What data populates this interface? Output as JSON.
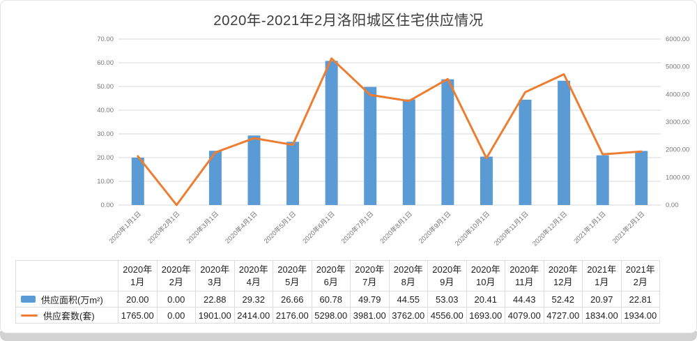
{
  "frame": {
    "panel_bg": "#ffffff",
    "panel_border": "#e3e3e3",
    "bottom_strip_color": "#d2d2d2"
  },
  "chart_data": {
    "type": "combo-bar-line",
    "title": "2020年-2021年2月洛阳城区住宅供应情况",
    "categories": [
      "2020年1月1日",
      "2020年2月1日",
      "2020年3月1日",
      "2020年4月1日",
      "2020年5月1日",
      "2020年6月1日",
      "2020年7月1日",
      "2020年8月1日",
      "2020年9月1日",
      "2020年10月1日",
      "2020年11月1日",
      "2020年12月1日",
      "2021年1月1日",
      "2021年2月1日"
    ],
    "series": [
      {
        "name": "供应面积(万m²)",
        "type": "bar",
        "axis": "left",
        "color": "#5B9BD5",
        "values": [
          20.0,
          0.0,
          22.88,
          29.32,
          26.66,
          60.78,
          49.79,
          44.55,
          53.03,
          20.41,
          44.43,
          52.42,
          20.97,
          22.81
        ]
      },
      {
        "name": "供应套数(套)",
        "type": "line",
        "axis": "right",
        "color": "#ED7D31",
        "values": [
          1765.0,
          0.0,
          1901.0,
          2414.0,
          2176.0,
          5298.0,
          3981.0,
          3762.0,
          4556.0,
          1693.0,
          4079.0,
          4727.0,
          1834.0,
          1934.0
        ]
      }
    ],
    "left_axis": {
      "min": 0,
      "max": 70,
      "ticks": [
        "0.00",
        "10.00",
        "20.00",
        "30.00",
        "40.00",
        "50.00",
        "60.00",
        "70.00"
      ]
    },
    "right_axis": {
      "min": 0,
      "max": 6000,
      "ticks": [
        "0.00",
        "1000.00",
        "2000.00",
        "3000.00",
        "4000.00",
        "5000.00",
        "6000.00"
      ]
    },
    "grid": true,
    "gridline_color": "#d9d9d9",
    "axis_text_color": "#767676",
    "legend_position": "table-left"
  },
  "table": {
    "column_headers": [
      {
        "year": "2020年",
        "month": "1月"
      },
      {
        "year": "2020年",
        "month": "2月"
      },
      {
        "year": "2020年",
        "month": "3月"
      },
      {
        "year": "2020年",
        "month": "4月"
      },
      {
        "year": "2020年",
        "month": "5月"
      },
      {
        "year": "2020年",
        "month": "6月"
      },
      {
        "year": "2020年",
        "month": "7月"
      },
      {
        "year": "2020年",
        "month": "8月"
      },
      {
        "year": "2020年",
        "month": "9月"
      },
      {
        "year": "2020年",
        "month": "10月"
      },
      {
        "year": "2020年",
        "month": "11月"
      },
      {
        "year": "2020年",
        "month": "12月"
      },
      {
        "year": "2021年",
        "month": "1月"
      },
      {
        "year": "2021年",
        "month": "2月"
      }
    ],
    "rows": [
      {
        "label": "供应面积(万m²)",
        "icon": "area-series-swatch-icon",
        "color": "#5B9BD5",
        "values": [
          "20.00",
          "0.00",
          "22.88",
          "29.32",
          "26.66",
          "60.78",
          "49.79",
          "44.55",
          "53.03",
          "20.41",
          "44.43",
          "52.42",
          "20.97",
          "22.81"
        ]
      },
      {
        "label": "供应套数(套)",
        "icon": "count-series-line-icon",
        "color": "#ED7D31",
        "values": [
          "1765.00",
          "0.00",
          "1901.00",
          "2414.00",
          "2176.00",
          "5298.00",
          "3981.00",
          "3762.00",
          "4556.00",
          "1693.00",
          "4079.00",
          "4727.00",
          "1834.00",
          "1934.00"
        ]
      }
    ]
  }
}
